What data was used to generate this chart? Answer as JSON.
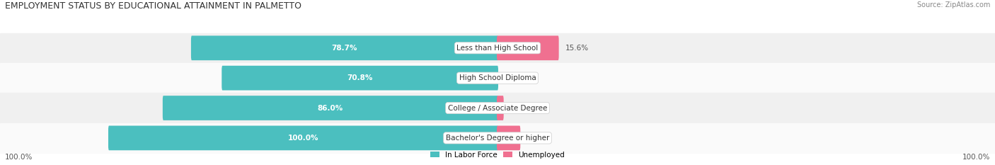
{
  "title": "EMPLOYMENT STATUS BY EDUCATIONAL ATTAINMENT IN PALMETTO",
  "source": "Source: ZipAtlas.com",
  "categories": [
    "Less than High School",
    "High School Diploma",
    "College / Associate Degree",
    "Bachelor's Degree or higher"
  ],
  "labor_force_values": [
    78.7,
    70.8,
    86.0,
    100.0
  ],
  "unemployed_values": [
    15.6,
    0.0,
    1.4,
    5.7
  ],
  "labor_force_color": "#4BBFBF",
  "unemployed_color": "#F07090",
  "row_bg_colors": [
    "#F0F0F0",
    "#FAFAFA",
    "#F0F0F0",
    "#FAFAFA"
  ],
  "max_value": 100.0,
  "x_left_label": "100.0%",
  "x_right_label": "100.0%",
  "legend_labor_force": "In Labor Force",
  "legend_unemployed": "Unemployed",
  "title_fontsize": 9,
  "bar_height": 0.52,
  "figsize": [
    14.06,
    2.33
  ],
  "dpi": 100
}
